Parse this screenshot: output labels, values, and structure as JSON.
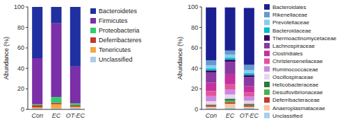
{
  "chart_data": [
    {
      "type": "bar",
      "stacked": true,
      "legend": "right",
      "y_label": "Abundance (%)",
      "categories": [
        "Con",
        "EC",
        "OT-EC"
      ],
      "ylim": [
        0,
        100
      ],
      "yticks": [
        0,
        20,
        40,
        60,
        80,
        100
      ],
      "series": [
        {
          "name": "Unclassified",
          "color": "#aacde8",
          "values": [
            1.0,
            1.0,
            1.5
          ]
        },
        {
          "name": "Tenericutes",
          "color": "#f4a642",
          "values": [
            1.0,
            4.0,
            1.0
          ]
        },
        {
          "name": "Deferribacteres",
          "color": "#c0392b",
          "values": [
            2.0,
            1.5,
            1.5
          ]
        },
        {
          "name": "Proteobacteria",
          "color": "#2ecc71",
          "values": [
            1.0,
            5.5,
            2.0
          ]
        },
        {
          "name": "Firmicutes",
          "color": "#7b2fa8",
          "values": [
            45.0,
            72.0,
            36.0
          ]
        },
        {
          "name": "Bacteroidetes",
          "color": "#2030a0",
          "values": [
            50.0,
            16.0,
            58.0
          ]
        }
      ]
    },
    {
      "type": "bar",
      "stacked": true,
      "legend": "right",
      "y_label": "Abundance (%)",
      "categories": [
        "Con",
        "EC",
        "OT-EC"
      ],
      "ylim": [
        0,
        100
      ],
      "yticks": [
        0,
        20,
        40,
        60,
        80,
        100
      ],
      "series": [
        {
          "name": "Unclassified",
          "color": "#aacde8",
          "values": [
            1.5,
            1.5,
            1.5
          ]
        },
        {
          "name": "Anaeroplasmataceae",
          "color": "#f5c6a0",
          "values": [
            1.0,
            4.0,
            1.0
          ]
        },
        {
          "name": "Deferribacteraceae",
          "color": "#c0392b",
          "values": [
            1.5,
            1.5,
            1.5
          ]
        },
        {
          "name": "Desulfovibrionaceae",
          "color": "#4caf50",
          "values": [
            0.5,
            1.5,
            0.5
          ]
        },
        {
          "name": "Helicobacteraceae",
          "color": "#2d7a3a",
          "values": [
            0.5,
            2.0,
            1.0
          ]
        },
        {
          "name": "Oscillospiraceae",
          "color": "#e8d4f0",
          "values": [
            3.0,
            4.0,
            3.0
          ]
        },
        {
          "name": "Ruminococcaceae",
          "color": "#cc88e0",
          "values": [
            5.0,
            5.0,
            4.0
          ]
        },
        {
          "name": "Christensenellaceae",
          "color": "#e0559a",
          "values": [
            5.0,
            5.0,
            4.0
          ]
        },
        {
          "name": "Clostridiales",
          "color": "#c430a0",
          "values": [
            8.0,
            10.0,
            6.0
          ]
        },
        {
          "name": "Lachnospiraceae",
          "color": "#883aa0",
          "values": [
            10.0,
            12.0,
            9.0
          ]
        },
        {
          "name": "Thermoactinomycetaceae",
          "color": "#3a0060",
          "values": [
            2.0,
            2.0,
            2.0
          ]
        },
        {
          "name": "Bacteroidaceae",
          "color": "#00b8cc",
          "values": [
            2.0,
            2.0,
            2.0
          ]
        },
        {
          "name": "Prevotellaceae",
          "color": "#88ccee",
          "values": [
            3.0,
            3.0,
            3.0
          ]
        },
        {
          "name": "Rikenellaceae",
          "color": "#6699cc",
          "values": [
            5.0,
            4.0,
            5.0
          ]
        },
        {
          "name": "Bacteroidales",
          "color": "#1a2090",
          "values": [
            51.5,
            42.0,
            55.5
          ]
        }
      ]
    }
  ]
}
